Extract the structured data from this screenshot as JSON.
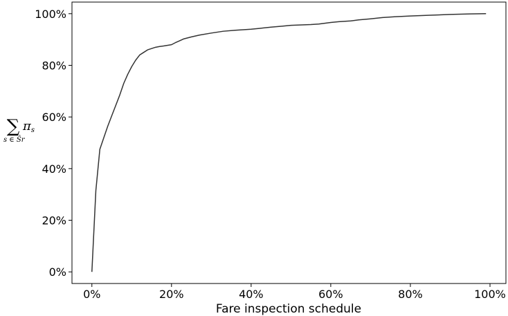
{
  "chart_data": {
    "type": "line",
    "xlabel": "Fare inspection schedule",
    "ylabel": {
      "symbol": "∑",
      "term": "π",
      "term_subscript": "s",
      "sum_subscript": "s ∈ Ŝr"
    },
    "xlim": [
      -0.05,
      1.04
    ],
    "ylim": [
      -0.045,
      1.045
    ],
    "x_ticks": [
      0,
      0.2,
      0.4,
      0.6,
      0.8,
      1.0
    ],
    "x_tick_labels": [
      "0%",
      "20%",
      "40%",
      "60%",
      "80%",
      "100%"
    ],
    "y_ticks": [
      0,
      0.2,
      0.4,
      0.6,
      0.8,
      1.0
    ],
    "y_tick_labels": [
      "0%",
      "20%",
      "40%",
      "60%",
      "80%",
      "100%"
    ],
    "grid": false,
    "series": [
      {
        "color": "#333333",
        "x": [
          0,
          0.01,
          0.02,
          0.03,
          0.04,
          0.05,
          0.06,
          0.07,
          0.08,
          0.09,
          0.1,
          0.11,
          0.12,
          0.13,
          0.14,
          0.15,
          0.16,
          0.17,
          0.18,
          0.2,
          0.21,
          0.22,
          0.23,
          0.25,
          0.27,
          0.3,
          0.33,
          0.36,
          0.38,
          0.4,
          0.42,
          0.45,
          0.48,
          0.5,
          0.55,
          0.57,
          0.6,
          0.62,
          0.65,
          0.67,
          0.7,
          0.73,
          0.76,
          0.8,
          0.85,
          0.9,
          0.95,
          0.99
        ],
        "values": [
          0.0,
          0.315,
          0.475,
          0.52,
          0.565,
          0.605,
          0.645,
          0.685,
          0.73,
          0.765,
          0.795,
          0.82,
          0.84,
          0.85,
          0.86,
          0.865,
          0.87,
          0.873,
          0.875,
          0.88,
          0.888,
          0.895,
          0.902,
          0.91,
          0.917,
          0.925,
          0.932,
          0.936,
          0.938,
          0.94,
          0.943,
          0.948,
          0.952,
          0.955,
          0.958,
          0.96,
          0.966,
          0.969,
          0.972,
          0.976,
          0.98,
          0.985,
          0.988,
          0.991,
          0.994,
          0.997,
          0.999,
          1.0
        ]
      }
    ]
  }
}
